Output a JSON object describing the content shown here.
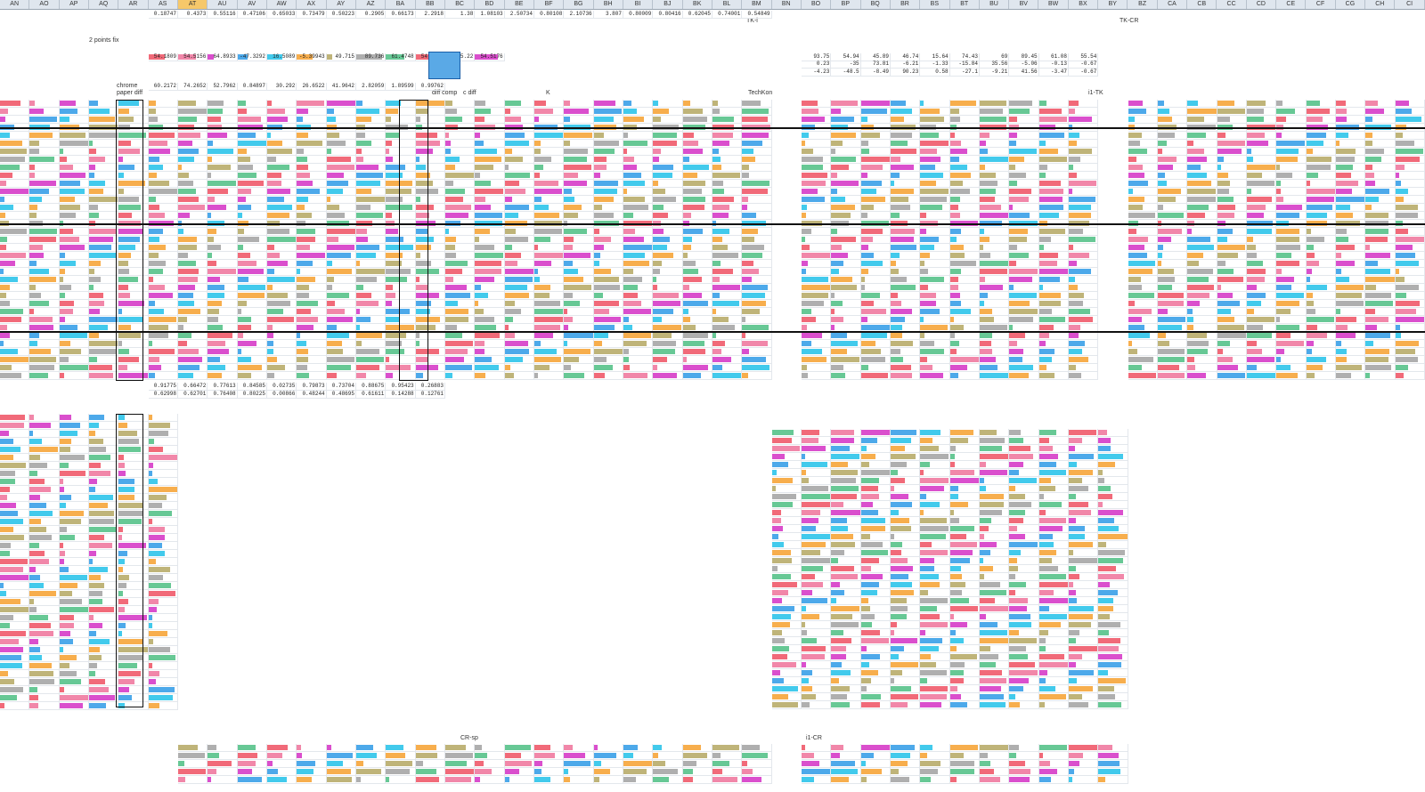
{
  "columns": [
    "AN",
    "AO",
    "AP",
    "AQ",
    "AR",
    "AS",
    "AT",
    "AU",
    "AV",
    "AW",
    "AX",
    "AY",
    "AZ",
    "BA",
    "BB",
    "BC",
    "BD",
    "BE",
    "BF",
    "BG",
    "BH",
    "BI",
    "BJ",
    "BK",
    "BL",
    "BM",
    "BN",
    "BO",
    "BP",
    "BQ",
    "BR",
    "BS",
    "BT",
    "BU",
    "BV",
    "BW",
    "BX",
    "BY",
    "BZ",
    "CA",
    "CB",
    "CC",
    "CD",
    "CE",
    "CF",
    "CG",
    "CH",
    "CI"
  ],
  "selected_column": "AT",
  "labels": {
    "points_fix": "2 points fix",
    "tk_i": "TK-i",
    "tk_cr": "TK-CR",
    "chrome": "chrome",
    "paper_diff": "paper diff",
    "diff_comp": "diff comp",
    "c_diff": "c diff",
    "k": "K",
    "techkon": "TechKon",
    "i1_tk": "i1-TK",
    "cr_sp": "CR-sp",
    "i1_cr": "i1-CR"
  },
  "top_values": {
    "r1": [
      "0.18747",
      "0.4373",
      "0.55116",
      "0.47106",
      "0.65033",
      "0.73479",
      "0.50223",
      "0.2905",
      "0.66173",
      "2.2918",
      "1.38",
      "1.08103",
      "2.50734",
      "0.80108",
      "2.10736",
      "3.807",
      "0.80009",
      "0.80416",
      "0.62045",
      "0.74001",
      "0.54849"
    ],
    "r2": [
      "54.1809",
      "54.5156",
      "64.8933",
      "-47.3292",
      "16.5089",
      "-5.39943",
      "49.715",
      "89.736",
      "61.4748",
      "54.5253",
      "55.22",
      "54.5176"
    ],
    "r3": [
      "93.75",
      "54.94",
      "45.89",
      "46.74",
      "15.64",
      "74.43",
      "69",
      "89.45",
      "61.08",
      "55.54"
    ],
    "r4": [
      "0.23",
      "-35",
      "73.81",
      "-6.21",
      "-1.33",
      "-15.84",
      "35.56",
      "-5.06",
      "-0.13",
      "-0.67"
    ],
    "r5": [
      "-4.23",
      "-48.5",
      "-8.49",
      "90.23",
      "0.58",
      "-27.1",
      "-9.21",
      "41.56",
      "-3.47",
      "-0.67"
    ]
  },
  "summary_values": {
    "s1": [
      "60.2172",
      "74.2652",
      "52.7962",
      "0.84897",
      "30.292",
      "26.6522",
      "41.9642",
      "2.82059",
      "1.89599",
      "0.99762"
    ],
    "s2": [
      "0.91775",
      "0.66472",
      "0.77613",
      "0.84585",
      "0.02735",
      "0.79873",
      "0.73704",
      "0.88675",
      "0.95423",
      "0.26883"
    ],
    "s3": [
      "0.62998",
      "0.62701",
      "0.76408",
      "0.80225",
      "0.00866",
      "0.48244",
      "0.48695",
      "0.61611",
      "0.14288",
      "0.12761"
    ]
  },
  "colors": {
    "red": "#ef5a6a",
    "pink": "#f07aa0",
    "magenta": "#d63cc8",
    "blue": "#3aa0e8",
    "cyan": "#2ec4ea",
    "orange": "#f6a53a",
    "yellow": "#f5e23a",
    "olive": "#b8ac6a",
    "gray": "#a6a6a6",
    "green": "#56c28a",
    "lightblue": "#7fc3f0"
  }
}
